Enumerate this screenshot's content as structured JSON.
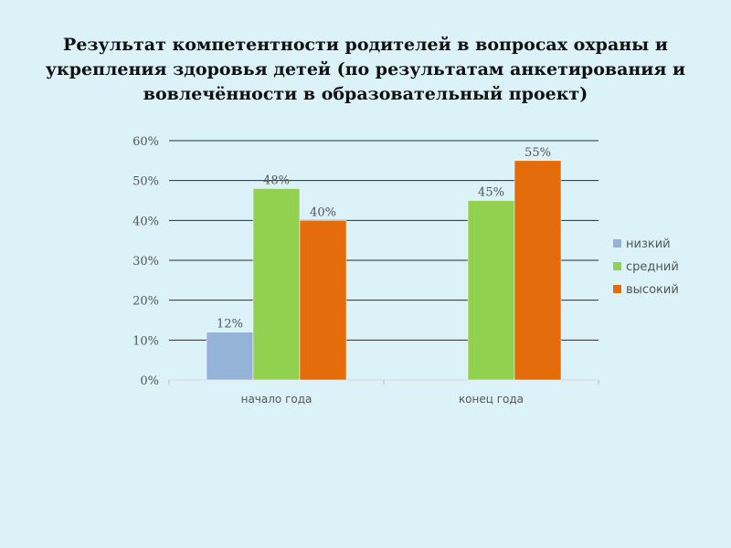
{
  "title_lines": [
    "Результат компетентности родителей в вопросах охраны и",
    "укрепления здоровья детей (по результатам анкетирования и",
    "вовлечённости  в образовательный проект)"
  ],
  "chart_data": {
    "type": "bar",
    "categories": [
      "начало года",
      "конец года"
    ],
    "series": [
      {
        "name": "низкий",
        "color": "#95b3d7",
        "values": [
          12,
          0
        ]
      },
      {
        "name": "средний",
        "color": "#92d050",
        "values": [
          48,
          45
        ]
      },
      {
        "name": "высокий",
        "color": "#e46c0a",
        "values": [
          40,
          55
        ]
      }
    ],
    "data_labels": [
      [
        "12%",
        ""
      ],
      [
        "48%",
        "45%"
      ],
      [
        "40%",
        "55%"
      ]
    ],
    "ylim": [
      0,
      60
    ],
    "yticks": [
      0,
      10,
      20,
      30,
      40,
      50,
      60
    ],
    "ytick_labels": [
      "0%",
      "10%",
      "20%",
      "30%",
      "40%",
      "50%",
      "60%"
    ],
    "grid": true,
    "legend_position": "right"
  }
}
